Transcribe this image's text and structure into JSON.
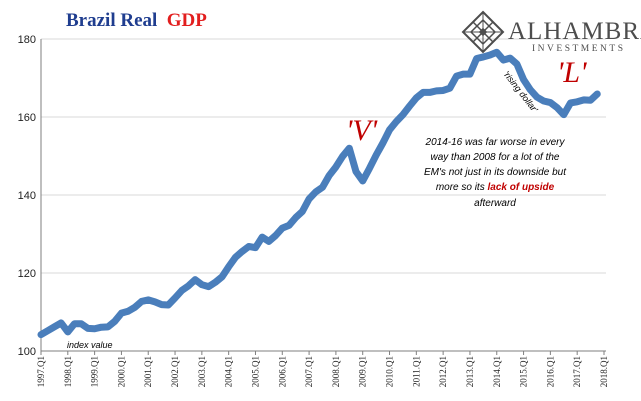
{
  "colors": {
    "line": "#4a7ebb",
    "title_main": "#1f3d8f",
    "title_accent": "#e21e1e",
    "annotation_red": "#c00000",
    "gridline": "#d9d9d9",
    "axis": "#7f7f7f"
  },
  "logo": {
    "name": "ALHAMBRA",
    "sub": "INVESTMENTS",
    "icon": "diamond-lattice-icon"
  },
  "chart_data": {
    "type": "line",
    "title_main": "Brazil Real",
    "title_accent": "GDP",
    "ylim": [
      100,
      180
    ],
    "yticks": [
      100,
      120,
      140,
      160,
      180
    ],
    "grid": true,
    "x_tick_labels": [
      "1997.Q1",
      "1998.Q1",
      "1999.Q1",
      "2000.Q1",
      "2001.Q1",
      "2002.Q1",
      "2003.Q1",
      "2004.Q1",
      "2005.Q1",
      "2006.Q1",
      "2007.Q1",
      "2008.Q1",
      "2009.Q1",
      "2010.Q1",
      "2011.Q1",
      "2012.Q1",
      "2013.Q1",
      "2014.Q1",
      "2015.Q1",
      "2016.Q1",
      "2017.Q1",
      "2018.Q1"
    ],
    "series": [
      {
        "name": "",
        "start": "1997.Q1",
        "frequency": "quarterly",
        "values": [
          104.2,
          105.2,
          106.2,
          107.2,
          104.9,
          107.0,
          107.0,
          105.8,
          105.7,
          106.1,
          106.2,
          107.6,
          109.7,
          110.2,
          111.2,
          112.7,
          113.1,
          112.6,
          111.9,
          111.8,
          113.6,
          115.5,
          116.7,
          118.3,
          117.0,
          116.5,
          117.6,
          119.0,
          121.6,
          124.0,
          125.5,
          126.8,
          126.5,
          129.2,
          128.1,
          129.6,
          131.5,
          132.2,
          134.2,
          135.8,
          139.0,
          140.8,
          142.0,
          145.0,
          147.2,
          149.9,
          152.0,
          146.0,
          143.6,
          146.8,
          150.2,
          153.3,
          156.7,
          158.8,
          160.6,
          162.8,
          164.9,
          166.3,
          166.3,
          166.7,
          166.8,
          167.4,
          170.5,
          171.0,
          171.0,
          175.0,
          175.4,
          175.9,
          176.6,
          174.6,
          175.1,
          173.6,
          169.6,
          167.0,
          165.1,
          164.1,
          163.7,
          162.4,
          160.6,
          163.6,
          163.9,
          164.4,
          164.3,
          165.9
        ]
      }
    ],
    "annotations": {
      "v_shape": "'V'",
      "l_shape": "'L'",
      "rising_dollar": "'rising dollar'",
      "index_value": "index value",
      "note_lines": [
        "2014-16 was far worse in every",
        "way than 2008 for a lot of the",
        "EM's not just in its downside but"
      ],
      "note_line4_prefix": "more so its ",
      "note_line4_emph": "lack of upside",
      "note_line5": "afterward"
    }
  }
}
